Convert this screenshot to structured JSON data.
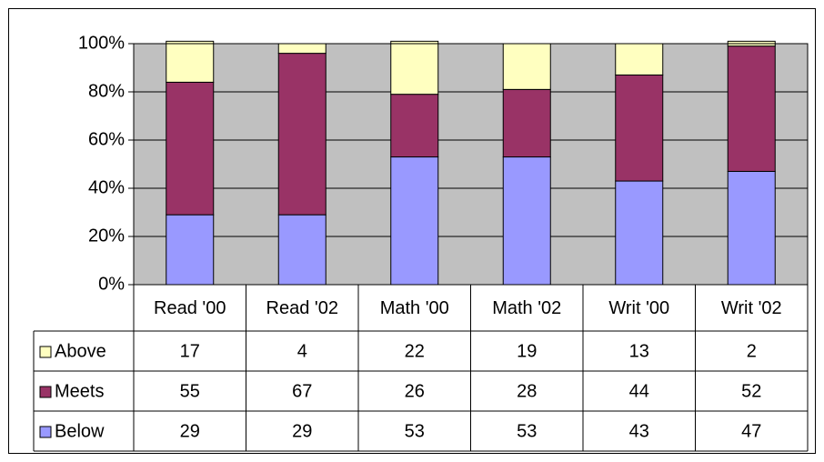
{
  "chart_data": {
    "type": "stacked_bar",
    "categories": [
      "Read '00",
      "Read '02",
      "Math '00",
      "Math '02",
      "Writ '00",
      "Writ '02"
    ],
    "series": [
      {
        "name": "Below",
        "color": "#9999ff",
        "values": [
          29,
          29,
          53,
          53,
          43,
          47
        ]
      },
      {
        "name": "Meets",
        "color": "#993366",
        "values": [
          55,
          67,
          26,
          28,
          44,
          52
        ]
      },
      {
        "name": "Above",
        "color": "#ffffc0",
        "values": [
          17,
          4,
          22,
          19,
          13,
          2
        ]
      }
    ],
    "ylim": [
      0,
      100
    ],
    "yticks": [
      {
        "value": 0,
        "label": "0%"
      },
      {
        "value": 20,
        "label": "20%"
      },
      {
        "value": 40,
        "label": "40%"
      },
      {
        "value": 60,
        "label": "60%"
      },
      {
        "value": 80,
        "label": "80%"
      },
      {
        "value": 100,
        "label": "100%"
      }
    ],
    "grid": true,
    "plot_background": "#c0c0c0",
    "data_table": true
  }
}
